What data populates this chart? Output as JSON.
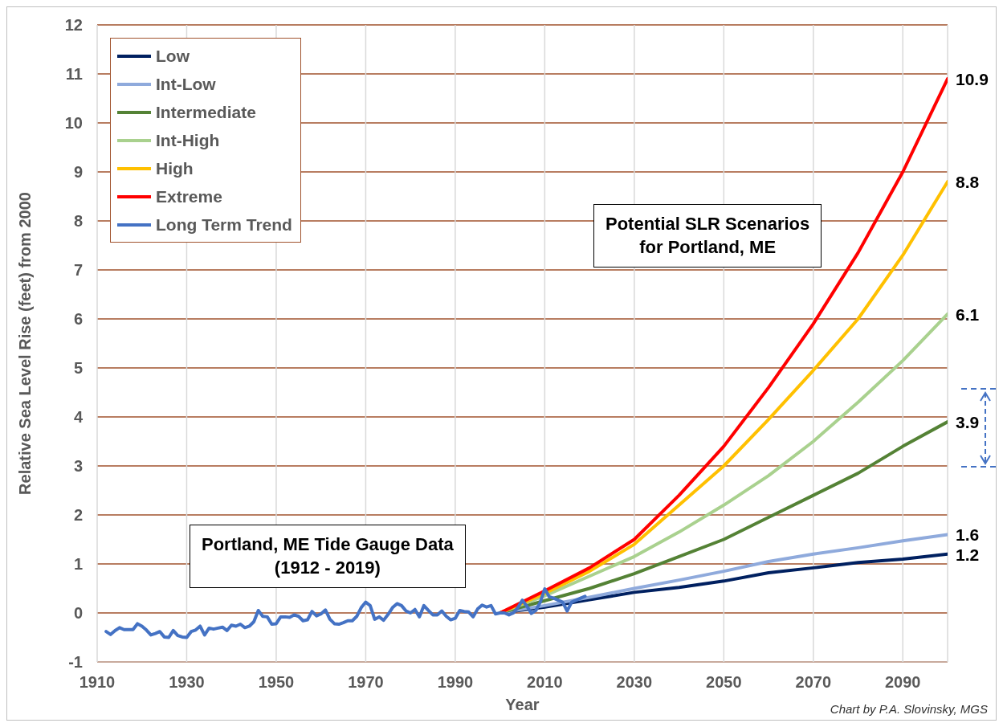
{
  "chart_data": {
    "type": "line",
    "xlabel": "Year",
    "ylabel": "Relative Sea Level Rise (feet) from 2000",
    "xlim": [
      1910,
      2100
    ],
    "xticks": [
      1910,
      1930,
      1950,
      1970,
      1990,
      2010,
      2030,
      2050,
      2070,
      2090
    ],
    "ylim": [
      -1,
      12
    ],
    "yticks": [
      -1,
      0,
      1,
      2,
      3,
      4,
      5,
      6,
      7,
      8,
      9,
      10,
      11,
      12
    ],
    "grid": true,
    "legend": "top left",
    "marker": "none",
    "line_style": "solid",
    "annotations": [
      "Potential SLR Scenarios\nfor Portland, ME",
      "Portland, ME Tide Gauge Data\n(1912 - 2019)",
      "Chart by P.A. Slovinsky, MGS"
    ],
    "series": [
      {
        "name": "Low",
        "color": "#002060",
        "x": [
          2000,
          2010,
          2020,
          2030,
          2040,
          2050,
          2060,
          2070,
          2080,
          2090,
          2100
        ],
        "values": [
          0,
          0.12,
          0.27,
          0.42,
          0.52,
          0.65,
          0.82,
          0.92,
          1.03,
          1.1,
          1.2
        ],
        "value_labels": [
          null,
          null,
          null,
          null,
          null,
          null,
          null,
          null,
          null,
          null,
          "1.2"
        ]
      },
      {
        "name": "Int-Low",
        "color": "#8faadc",
        "x": [
          2000,
          2010,
          2020,
          2030,
          2040,
          2050,
          2060,
          2070,
          2080,
          2090,
          2100
        ],
        "values": [
          0,
          0.15,
          0.32,
          0.5,
          0.67,
          0.85,
          1.05,
          1.2,
          1.33,
          1.47,
          1.6
        ],
        "value_labels": [
          null,
          null,
          null,
          null,
          null,
          null,
          null,
          null,
          null,
          null,
          "1.6"
        ]
      },
      {
        "name": "Intermediate",
        "color": "#548235",
        "x": [
          2000,
          2010,
          2020,
          2030,
          2040,
          2050,
          2060,
          2070,
          2080,
          2090,
          2100
        ],
        "values": [
          0,
          0.25,
          0.5,
          0.8,
          1.15,
          1.5,
          1.95,
          2.4,
          2.85,
          3.4,
          3.9
        ],
        "value_labels": [
          null,
          null,
          null,
          null,
          null,
          null,
          null,
          null,
          null,
          null,
          "3.9"
        ]
      },
      {
        "name": "Int-High",
        "color": "#a9d18e",
        "x": [
          2000,
          2010,
          2020,
          2030,
          2040,
          2050,
          2060,
          2070,
          2080,
          2090,
          2100
        ],
        "values": [
          0,
          0.35,
          0.75,
          1.15,
          1.65,
          2.2,
          2.8,
          3.5,
          4.3,
          5.15,
          6.1
        ],
        "value_labels": [
          null,
          null,
          null,
          null,
          null,
          null,
          null,
          null,
          null,
          null,
          "6.1"
        ]
      },
      {
        "name": "High",
        "color": "#ffc000",
        "x": [
          2000,
          2010,
          2020,
          2030,
          2040,
          2050,
          2060,
          2070,
          2080,
          2090,
          2100
        ],
        "values": [
          0,
          0.4,
          0.85,
          1.4,
          2.2,
          3.0,
          3.95,
          4.95,
          6.0,
          7.3,
          8.8
        ],
        "value_labels": [
          null,
          null,
          null,
          null,
          null,
          null,
          null,
          null,
          null,
          null,
          "8.8"
        ]
      },
      {
        "name": "Extreme",
        "color": "#ff0000",
        "x": [
          2000,
          2010,
          2020,
          2030,
          2040,
          2050,
          2060,
          2070,
          2080,
          2090,
          2100
        ],
        "values": [
          0,
          0.45,
          0.92,
          1.5,
          2.4,
          3.4,
          4.6,
          5.9,
          7.35,
          9.0,
          10.9
        ],
        "value_labels": [
          null,
          null,
          null,
          null,
          null,
          null,
          null,
          null,
          null,
          null,
          "10.9"
        ]
      },
      {
        "name": "Long Term Trend",
        "color": "#4472c4",
        "x": [
          1912,
          1913,
          1914,
          1915,
          1916,
          1917,
          1918,
          1919,
          1920,
          1921,
          1922,
          1923,
          1924,
          1925,
          1926,
          1927,
          1928,
          1929,
          1930,
          1931,
          1932,
          1933,
          1934,
          1935,
          1936,
          1937,
          1938,
          1939,
          1940,
          1941,
          1942,
          1943,
          1944,
          1945,
          1946,
          1947,
          1948,
          1949,
          1950,
          1951,
          1952,
          1953,
          1954,
          1955,
          1956,
          1957,
          1958,
          1959,
          1960,
          1961,
          1962,
          1963,
          1964,
          1965,
          1966,
          1967,
          1968,
          1969,
          1970,
          1971,
          1972,
          1973,
          1974,
          1975,
          1976,
          1977,
          1978,
          1979,
          1980,
          1981,
          1982,
          1983,
          1984,
          1985,
          1986,
          1987,
          1988,
          1989,
          1990,
          1991,
          1992,
          1993,
          1994,
          1995,
          1996,
          1997,
          1998,
          1999,
          2000,
          2001,
          2002,
          2003,
          2004,
          2005,
          2006,
          2007,
          2008,
          2009,
          2010,
          2011,
          2012,
          2013,
          2014,
          2015,
          2016,
          2017,
          2018,
          2019
        ],
        "values": [
          -0.38,
          -0.44,
          -0.36,
          -0.3,
          -0.34,
          -0.34,
          -0.34,
          -0.22,
          -0.27,
          -0.35,
          -0.45,
          -0.42,
          -0.38,
          -0.49,
          -0.5,
          -0.36,
          -0.46,
          -0.49,
          -0.5,
          -0.38,
          -0.35,
          -0.27,
          -0.45,
          -0.31,
          -0.33,
          -0.31,
          -0.29,
          -0.36,
          -0.25,
          -0.27,
          -0.23,
          -0.3,
          -0.27,
          -0.18,
          0.05,
          -0.07,
          -0.08,
          -0.23,
          -0.22,
          -0.08,
          -0.08,
          -0.09,
          -0.04,
          -0.07,
          -0.16,
          -0.14,
          0.03,
          -0.06,
          -0.02,
          0.06,
          -0.13,
          -0.22,
          -0.23,
          -0.2,
          -0.16,
          -0.16,
          -0.07,
          0.11,
          0.22,
          0.15,
          -0.13,
          -0.08,
          -0.15,
          -0.03,
          0.11,
          0.19,
          0.15,
          0.04,
          0.0,
          0.07,
          -0.08,
          0.15,
          0.05,
          -0.04,
          -0.04,
          0.04,
          -0.07,
          -0.14,
          -0.11,
          0.05,
          0.03,
          0.02,
          -0.08,
          0.08,
          0.16,
          0.12,
          0.15,
          -0.02,
          0.0,
          0.0,
          -0.04,
          0.0,
          0.11,
          0.26,
          0.14,
          -0.01,
          0.05,
          0.22,
          0.49,
          0.33,
          0.3,
          0.26,
          0.22,
          0.04,
          0.22,
          0.26,
          0.3,
          0.34
        ]
      }
    ]
  }
}
